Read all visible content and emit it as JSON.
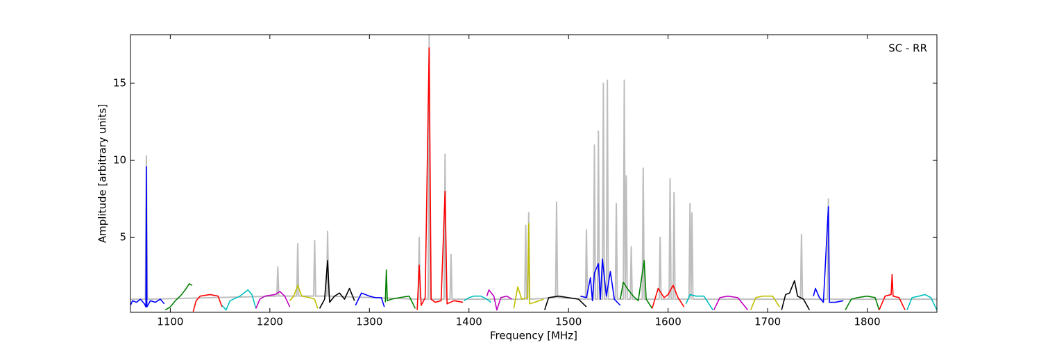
{
  "chart_data": {
    "type": "line",
    "annotation": "SC - RR",
    "x_label": "Frequency [MHz]",
    "y_label": "Amplitude [arbitrary units]",
    "xlim": [
      1060,
      1870
    ],
    "ylim": [
      0.15,
      18.15
    ],
    "xticks": [
      1100,
      1200,
      1300,
      1400,
      1500,
      1600,
      1700,
      1800
    ],
    "yticks": [
      5,
      10,
      15
    ],
    "series": [
      {
        "color": "#bebebe",
        "x": [
          1060,
          1075,
          1076,
          1077,
          1207,
          1208,
          1209,
          1227,
          1228,
          1229,
          1244,
          1245,
          1246,
          1257,
          1258,
          1259,
          1349,
          1350,
          1351,
          1359,
          1360,
          1361,
          1375,
          1376,
          1377,
          1381,
          1382,
          1383,
          1456,
          1457,
          1458,
          1459,
          1460,
          1461,
          1487,
          1488,
          1489,
          1517,
          1518,
          1519,
          1525,
          1526,
          1527,
          1529,
          1530,
          1531,
          1534,
          1535,
          1536,
          1538,
          1539,
          1540,
          1547,
          1548,
          1549,
          1555,
          1556,
          1557,
          1558,
          1559,
          1562,
          1563,
          1564,
          1574,
          1575,
          1576,
          1591,
          1592,
          1593,
          1601,
          1602,
          1603,
          1605,
          1606,
          1607,
          1621,
          1622,
          1623,
          1624,
          1625,
          1733,
          1734,
          1735,
          1760,
          1761,
          1762,
          1870
        ],
        "values": [
          1.0,
          1.0,
          10.3,
          1.0,
          1.2,
          3.1,
          1.2,
          1.2,
          4.6,
          1.2,
          1.2,
          4.8,
          1.2,
          1.2,
          5.4,
          1.2,
          1.0,
          5.0,
          1.0,
          1.0,
          18.1,
          1.0,
          1.0,
          10.4,
          1.0,
          1.0,
          3.9,
          1.0,
          1.0,
          5.8,
          1.0,
          1.0,
          6.6,
          1.0,
          1.1,
          7.3,
          1.1,
          1.0,
          5.5,
          1.0,
          1.0,
          11.0,
          1.0,
          1.0,
          11.9,
          1.0,
          1.0,
          15.0,
          1.0,
          1.0,
          15.2,
          1.0,
          1.0,
          7.2,
          1.0,
          1.0,
          15.2,
          1.0,
          9.0,
          1.0,
          1.0,
          4.4,
          1.0,
          1.0,
          9.5,
          1.0,
          1.0,
          5.0,
          1.0,
          1.0,
          8.8,
          1.0,
          1.0,
          7.9,
          1.0,
          1.0,
          7.2,
          1.0,
          6.6,
          1.0,
          1.0,
          5.2,
          1.0,
          1.0,
          7.5,
          1.0,
          1.0
        ]
      },
      {
        "color": "#0000ff",
        "x": [
          1060,
          1062,
          1066,
          1070,
          1074,
          1075.5,
          1076,
          1076.5,
          1080,
          1085,
          1090,
          1094
        ],
        "values": [
          0.6,
          0.9,
          0.8,
          1.0,
          0.7,
          0.5,
          9.6,
          0.5,
          0.9,
          0.8,
          1.0,
          0.7
        ]
      },
      {
        "color": "#008000",
        "x": [
          1095,
          1100,
          1105,
          1110,
          1115,
          1119,
          1122
        ],
        "values": [
          0.3,
          0.5,
          0.9,
          1.2,
          1.6,
          2.0,
          1.9
        ]
      },
      {
        "color": "#ff0000",
        "x": [
          1123,
          1126,
          1130,
          1140,
          1148,
          1152
        ],
        "values": [
          0.2,
          0.9,
          1.2,
          1.3,
          1.2,
          0.5
        ]
      },
      {
        "color": "#00bfbf",
        "x": [
          1152,
          1156,
          1160,
          1170,
          1178,
          1182,
          1186
        ],
        "values": [
          0.6,
          0.3,
          0.9,
          1.2,
          1.6,
          1.3,
          0.4
        ]
      },
      {
        "color": "#bf00bf",
        "x": [
          1186,
          1190,
          1195,
          1205,
          1210,
          1215,
          1220
        ],
        "values": [
          0.4,
          1.0,
          1.2,
          1.3,
          1.5,
          1.2,
          0.5
        ]
      },
      {
        "color": "#bfbf00",
        "x": [
          1220,
          1224,
          1228,
          1232,
          1240,
          1245,
          1248
        ],
        "values": [
          0.9,
          1.2,
          1.9,
          1.2,
          1.1,
          1.0,
          0.4
        ]
      },
      {
        "color": "#000000",
        "x": [
          1250,
          1255,
          1258,
          1260,
          1265,
          1270,
          1275,
          1280,
          1285
        ],
        "values": [
          0.4,
          1.0,
          3.5,
          0.8,
          1.2,
          1.4,
          1.0,
          1.7,
          0.9
        ]
      },
      {
        "color": "#0000ff",
        "x": [
          1286,
          1292,
          1300,
          1306,
          1312,
          1315
        ],
        "values": [
          0.6,
          1.4,
          1.2,
          1.1,
          1.1,
          0.5
        ]
      },
      {
        "color": "#008000",
        "x": [
          1316,
          1317,
          1318,
          1322,
          1330,
          1340,
          1346
        ],
        "values": [
          0.8,
          2.9,
          0.9,
          1.0,
          1.1,
          1.2,
          0.4
        ]
      },
      {
        "color": "#ff0000",
        "x": [
          1348,
          1350,
          1352,
          1356,
          1360,
          1362,
          1366,
          1372,
          1376,
          1378,
          1385,
          1394
        ],
        "values": [
          0.3,
          3.2,
          0.6,
          1.1,
          17.3,
          1.0,
          0.8,
          0.9,
          8.0,
          0.7,
          0.9,
          0.8
        ]
      },
      {
        "color": "#00bfbf",
        "x": [
          1395,
          1400,
          1405,
          1412,
          1418,
          1422
        ],
        "values": [
          0.9,
          1.1,
          1.2,
          1.2,
          1.0,
          0.8
        ]
      },
      {
        "color": "#bf00bf",
        "x": [
          1418,
          1420,
          1425,
          1428,
          1432,
          1438,
          1443
        ],
        "values": [
          1.2,
          1.6,
          1.2,
          0.3,
          1.1,
          1.2,
          1.0
        ]
      },
      {
        "color": "#bfbf00",
        "x": [
          1445,
          1449,
          1453,
          1459,
          1460,
          1461,
          1466,
          1475
        ],
        "values": [
          0.4,
          1.8,
          1.0,
          1.1,
          5.9,
          0.7,
          0.8,
          1.0
        ]
      },
      {
        "color": "#000000",
        "x": [
          1476,
          1480,
          1490,
          1500,
          1510,
          1518
        ],
        "values": [
          0.3,
          1.1,
          1.2,
          1.1,
          1.0,
          0.5
        ]
      },
      {
        "color": "#0000ff",
        "x": [
          1512,
          1518,
          1522,
          1524,
          1526,
          1530,
          1532,
          1534,
          1538,
          1542,
          1546,
          1552
        ],
        "values": [
          1.2,
          1.1,
          2.4,
          0.9,
          2.7,
          3.3,
          1.0,
          3.6,
          1.2,
          2.8,
          1.0,
          0.6
        ]
      },
      {
        "color": "#008000",
        "x": [
          1552,
          1555,
          1560,
          1565,
          1570,
          1576,
          1578,
          1584
        ],
        "values": [
          1.0,
          2.1,
          1.6,
          1.2,
          0.9,
          3.5,
          1.0,
          0.4
        ]
      },
      {
        "color": "#ff0000",
        "x": [
          1584,
          1590,
          1596,
          1600,
          1605,
          1610,
          1616
        ],
        "values": [
          0.4,
          1.7,
          1.1,
          1.3,
          1.9,
          1.1,
          0.5
        ]
      },
      {
        "color": "#00bfbf",
        "x": [
          1618,
          1622,
          1628,
          1636,
          1645
        ],
        "values": [
          0.7,
          1.3,
          1.2,
          1.2,
          0.3
        ]
      },
      {
        "color": "#bf00bf",
        "x": [
          1646,
          1652,
          1660,
          1670,
          1680
        ],
        "values": [
          0.3,
          1.1,
          1.2,
          1.1,
          0.3
        ]
      },
      {
        "color": "#bfbf00",
        "x": [
          1683,
          1688,
          1695,
          1705,
          1712
        ],
        "values": [
          0.3,
          1.1,
          1.2,
          1.2,
          0.5
        ]
      },
      {
        "color": "#000000",
        "x": [
          1714,
          1718,
          1722,
          1727,
          1730,
          1736,
          1742
        ],
        "values": [
          0.3,
          1.3,
          1.4,
          2.2,
          1.2,
          1.0,
          0.3
        ]
      },
      {
        "color": "#0000ff",
        "x": [
          1746,
          1748,
          1752,
          1756,
          1761,
          1762,
          1768,
          1776
        ],
        "values": [
          1.2,
          1.7,
          1.1,
          0.8,
          7.0,
          0.8,
          0.8,
          0.9
        ]
      },
      {
        "color": "#008000",
        "x": [
          1778,
          1784,
          1790,
          1800,
          1808,
          1812
        ],
        "values": [
          0.3,
          1.0,
          1.1,
          1.2,
          1.1,
          0.3
        ]
      },
      {
        "color": "#ff0000",
        "x": [
          1812,
          1818,
          1824,
          1825,
          1826,
          1832,
          1838
        ],
        "values": [
          0.3,
          1.2,
          1.3,
          2.6,
          1.2,
          1.1,
          0.3
        ]
      },
      {
        "color": "#00bfbf",
        "x": [
          1840,
          1845,
          1852,
          1858,
          1864,
          1870
        ],
        "values": [
          0.3,
          1.1,
          1.2,
          1.3,
          1.1,
          0.3
        ]
      }
    ]
  }
}
